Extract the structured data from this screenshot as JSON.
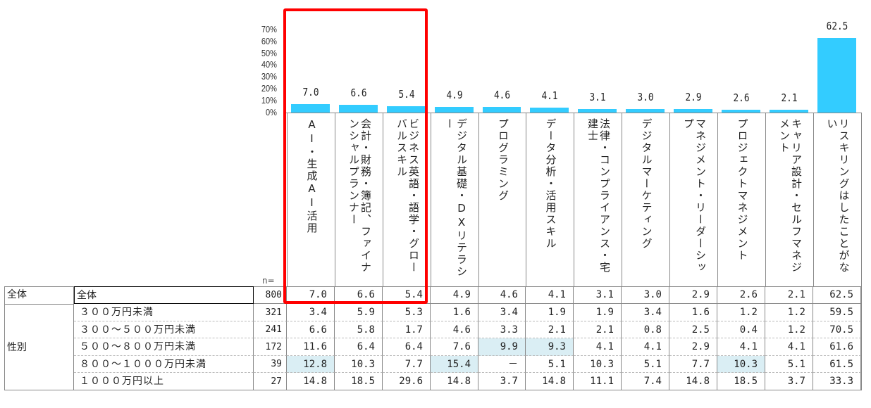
{
  "chart_data": {
    "type": "bar",
    "title": "",
    "xlabel": "",
    "ylabel": "",
    "ylim": [
      0,
      70
    ],
    "yticks": [
      "70%",
      "60%",
      "50%",
      "40%",
      "30%",
      "20%",
      "10%",
      "0%"
    ],
    "grid": false,
    "legend": "none",
    "categories": [
      "AI・生成AI活用",
      "会計・財務・簿記、ファイナンシャルプランナー",
      "ビジネス英語・語学・グローバルスキル",
      "デジタル基礎・DXリテラシー",
      "プログラミング",
      "データ分析・活用スキル",
      "法律・コンプライアンス・宅建士",
      "デジタルマーケティング",
      "マネジメント・リーダーシップ",
      "プロジェクトマネジメント",
      "キャリア設計・セルフマネジメント",
      "リスキリングはしたことがない"
    ],
    "values": [
      7.0,
      6.6,
      5.4,
      4.9,
      4.6,
      4.1,
      3.1,
      3.0,
      2.9,
      2.6,
      2.1,
      62.5
    ],
    "bar_color": "#33ccff",
    "highlight_box_color": "#ff0000",
    "highlighted_categories": [
      0,
      1,
      2
    ]
  },
  "axis": {
    "ticks": [
      "70%",
      "60%",
      "50%",
      "40%",
      "30%",
      "20%",
      "10%",
      "0%"
    ],
    "n_label": "n="
  },
  "bars": {
    "labels": [
      "7.0",
      "6.6",
      "5.4",
      "4.9",
      "4.6",
      "4.1",
      "3.1",
      "3.0",
      "2.9",
      "2.6",
      "2.1",
      "62.5"
    ],
    "categories": [
      "AI・生成AI活用",
      "会計・財務・簿記、ファイナンシャルプランナー",
      "ビジネス英語・語学・グローバルスキル",
      "デジタル基礎・DXリテラシー",
      "プログラミング",
      "データ分析・活用スキル",
      "法律・コンプライアンス・宅建士",
      "デジタルマーケティング",
      "マネジメント・リーダーシップ",
      "プロジェクトマネジメント",
      "キャリア設計・セルフマネジメント",
      "リスキリングはしたことがない"
    ]
  },
  "table": {
    "total_row": {
      "group": "全体",
      "label": "全体",
      "n": "800",
      "values": [
        "7.0",
        "6.6",
        "5.4",
        "4.9",
        "4.6",
        "4.1",
        "3.1",
        "3.0",
        "2.9",
        "2.6",
        "2.1",
        "62.5"
      ]
    },
    "group_label": "性別",
    "rows": [
      {
        "label": "３００万円未満",
        "n": "321",
        "values": [
          "3.4",
          "5.9",
          "5.3",
          "1.6",
          "3.4",
          "1.9",
          "1.9",
          "3.4",
          "1.6",
          "1.2",
          "1.2",
          "59.5"
        ],
        "highlight": []
      },
      {
        "label": "３００～５００万円未満",
        "n": "241",
        "values": [
          "6.6",
          "5.8",
          "1.7",
          "4.6",
          "3.3",
          "2.1",
          "2.1",
          "0.8",
          "2.5",
          "0.4",
          "1.2",
          "70.5"
        ],
        "highlight": []
      },
      {
        "label": "５００～８００万円未満",
        "n": "172",
        "values": [
          "11.6",
          "6.4",
          "6.4",
          "7.6",
          "9.9",
          "9.3",
          "4.1",
          "4.1",
          "2.9",
          "4.1",
          "4.1",
          "61.6"
        ],
        "highlight": [
          4,
          5
        ]
      },
      {
        "label": "８００～１０００万円未満",
        "n": "39",
        "values": [
          "12.8",
          "10.3",
          "7.7",
          "15.4",
          "－",
          "5.1",
          "10.3",
          "5.1",
          "7.7",
          "10.3",
          "5.1",
          "61.5"
        ],
        "highlight": [
          0,
          3,
          9
        ]
      },
      {
        "label": "１０００万円以上",
        "n": "27",
        "values": [
          "14.8",
          "18.5",
          "29.6",
          "14.8",
          "3.7",
          "14.8",
          "11.1",
          "7.4",
          "14.8",
          "18.5",
          "3.7",
          "33.3"
        ],
        "highlight": []
      }
    ],
    "highlight_color": "#daeef4",
    "legend_swatch_color": "#33ccff"
  }
}
